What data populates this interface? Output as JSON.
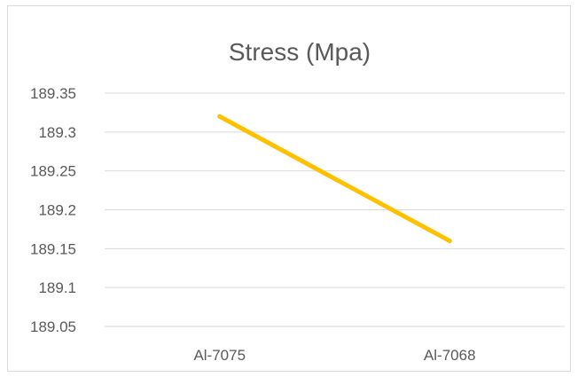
{
  "chart_data": {
    "type": "line",
    "title": "Stress (Mpa)",
    "categories": [
      "Al-7075",
      "Al-7068"
    ],
    "series": [
      {
        "values": [
          189.32,
          189.16
        ],
        "color": "#FFC000"
      }
    ],
    "ylim": [
      189.05,
      189.35
    ],
    "yticks": [
      "189.35",
      "189.3",
      "189.25",
      "189.2",
      "189.15",
      "189.1",
      "189.05"
    ],
    "grid": true,
    "gridline_color": "#d9d9d9",
    "xlabel": "",
    "ylabel": ""
  }
}
